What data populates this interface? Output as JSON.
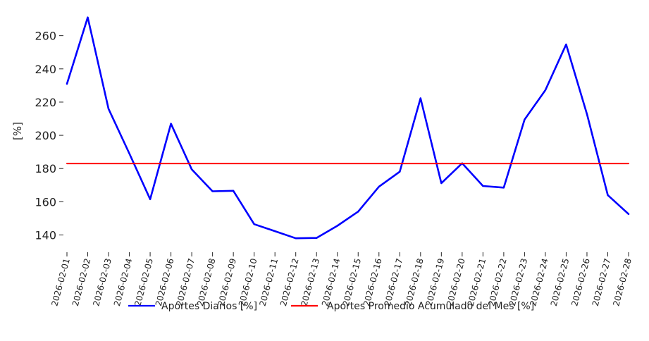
{
  "chart_data": {
    "type": "line",
    "ylabel": "[%]",
    "ylim": [
      133,
      273
    ],
    "yticks": [
      140,
      160,
      180,
      200,
      220,
      240,
      260
    ],
    "x": [
      "2026-02-01",
      "2026-02-02",
      "2026-02-03",
      "2026-02-04",
      "2026-02-05",
      "2026-02-06",
      "2026-02-07",
      "2026-02-08",
      "2026-02-09",
      "2026-02-10",
      "2026-02-11",
      "2026-02-12",
      "2026-02-13",
      "2026-02-14",
      "2026-02-15",
      "2026-02-16",
      "2026-02-17",
      "2026-02-18",
      "2026-02-19",
      "2026-02-20",
      "2026-02-21",
      "2026-02-22",
      "2026-02-23",
      "2026-02-24",
      "2026-02-25",
      "2026-02-26",
      "2026-02-27",
      "2026-02-28"
    ],
    "series": [
      {
        "name": "Aportes Diarios [%]",
        "color": "#0000ff",
        "values": [
          231,
          271,
          216,
          189,
          161.5,
          207,
          179.5,
          166.3,
          166.6,
          146.5,
          142.3,
          138,
          138.2,
          145.5,
          154.1,
          169.1,
          178.1,
          222.3,
          171.2,
          183.2,
          169.5,
          168.5,
          209.5,
          227.2,
          254.7,
          212.7,
          164,
          152.6
        ]
      },
      {
        "name": "Aportes Promedio Acumulado del Mes [%]",
        "color": "#ff0000",
        "values": [
          183,
          183,
          183,
          183,
          183,
          183,
          183,
          183,
          183,
          183,
          183,
          183,
          183,
          183,
          183,
          183,
          183,
          183,
          183,
          183,
          183,
          183,
          183,
          183,
          183,
          183,
          183,
          183
        ]
      }
    ],
    "grid": false,
    "legend_position": "bottom-center"
  }
}
